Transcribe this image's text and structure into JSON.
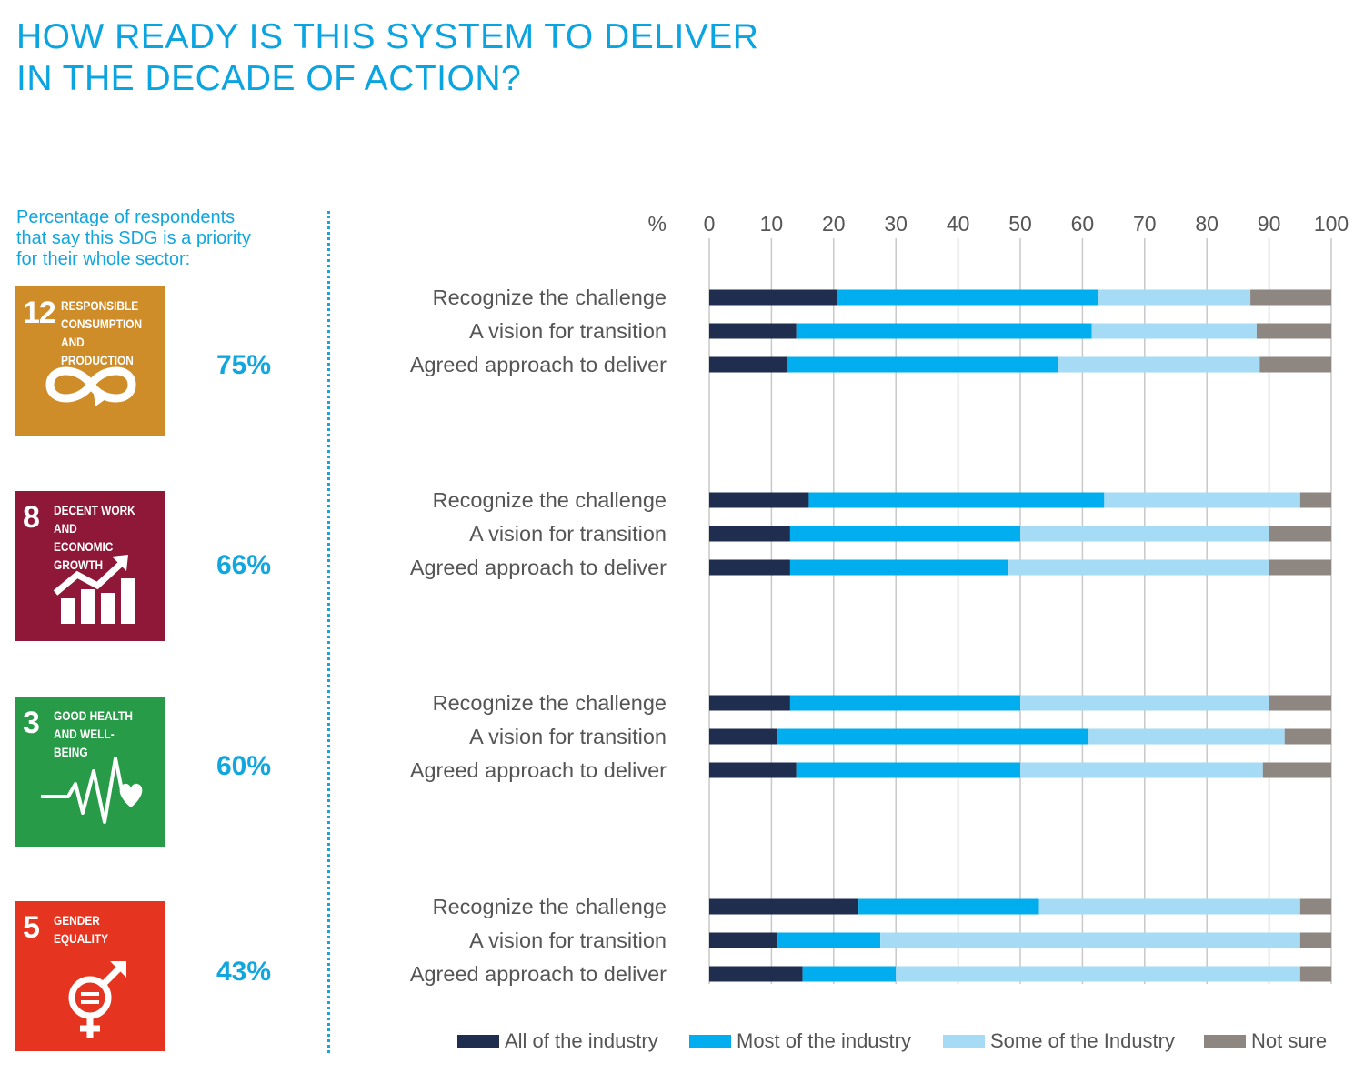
{
  "title": {
    "line1": "HOW READY IS THIS SYSTEM TO DELIVER",
    "line2": "IN THE DECADE OF ACTION?"
  },
  "subtitle": {
    "line1": "Percentage of respondents",
    "line2": "that say this SDG is a priority",
    "line3": "for their whole sector:"
  },
  "colors": {
    "title": "#0aa4e0",
    "all": "#1f2d4f",
    "most": "#00aeef",
    "some": "#a6dbf5",
    "notsure": "#8e8681",
    "sdg12": "#cf8d2a",
    "sdg8": "#8f1838",
    "sdg3": "#279b48",
    "sdg5": "#e5341f"
  },
  "sdgs": [
    {
      "number": "12",
      "label_lines": [
        "RESPONSIBLE",
        "CONSUMPTION",
        "AND PRODUCTION"
      ],
      "icon": "infinity-icon",
      "priority": "75%"
    },
    {
      "number": "8",
      "label_lines": [
        "DECENT WORK AND",
        "ECONOMIC GROWTH"
      ],
      "icon": "growth-chart-icon",
      "priority": "66%"
    },
    {
      "number": "3",
      "label_lines": [
        "GOOD HEALTH",
        "AND WELL-BEING"
      ],
      "icon": "heartbeat-icon",
      "priority": "60%"
    },
    {
      "number": "5",
      "label_lines": [
        "GENDER",
        "EQUALITY"
      ],
      "icon": "gender-equality-icon",
      "priority": "43%"
    }
  ],
  "chart_data": {
    "type": "bar",
    "orientation": "horizontal",
    "stacked": true,
    "axis_unit_label": "%",
    "xlim": [
      0,
      100
    ],
    "xticks": [
      0,
      10,
      20,
      30,
      40,
      50,
      60,
      70,
      80,
      90,
      100
    ],
    "grid": true,
    "legend_position": "bottom",
    "series_names": [
      "All of the industry",
      "Most of the industry",
      "Some of the Industry",
      "Not sure"
    ],
    "groups": [
      {
        "sdg": "12",
        "rows": [
          {
            "label": "Recognize the challenge",
            "values": [
              20.5,
              42,
              24.5,
              13
            ]
          },
          {
            "label": "A vision for transition",
            "values": [
              14,
              47.5,
              26.5,
              12
            ]
          },
          {
            "label": "Agreed approach to deliver",
            "values": [
              12.5,
              43.5,
              32.5,
              11.5
            ]
          }
        ]
      },
      {
        "sdg": "8",
        "rows": [
          {
            "label": "Recognize the challenge",
            "values": [
              16,
              47.5,
              31.5,
              5
            ]
          },
          {
            "label": "A vision for transition",
            "values": [
              13,
              37,
              40,
              10
            ]
          },
          {
            "label": "Agreed approach to deliver",
            "values": [
              13,
              35,
              42,
              10
            ]
          }
        ]
      },
      {
        "sdg": "3",
        "rows": [
          {
            "label": "Recognize the challenge",
            "values": [
              13,
              37,
              40,
              10
            ]
          },
          {
            "label": "A vision for transition",
            "values": [
              11,
              50,
              31.5,
              7.5
            ]
          },
          {
            "label": "Agreed approach to deliver",
            "values": [
              14,
              36,
              39,
              11
            ]
          }
        ]
      },
      {
        "sdg": "5",
        "rows": [
          {
            "label": "Recognize the challenge",
            "values": [
              24,
              29,
              42,
              5
            ]
          },
          {
            "label": "A vision for transition",
            "values": [
              11,
              16.5,
              67.5,
              5
            ]
          },
          {
            "label": "Agreed approach to deliver",
            "values": [
              15,
              15,
              65,
              5
            ]
          }
        ]
      }
    ]
  }
}
